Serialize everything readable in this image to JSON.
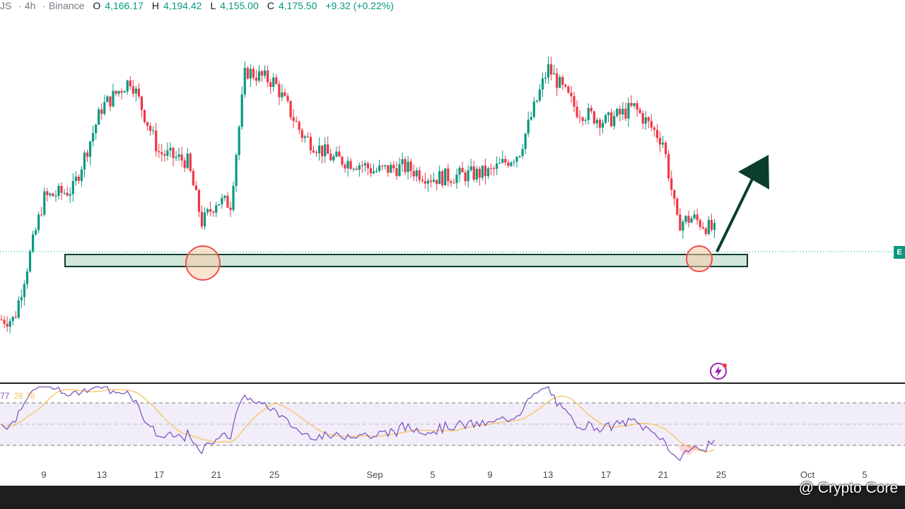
{
  "header": {
    "symbol_fragment": "JS",
    "interval": "4h",
    "exchange": "Binance",
    "open_label": "O",
    "open": "4,166.17",
    "high_label": "H",
    "high": "4,194.42",
    "low_label": "L",
    "low": "4,155.00",
    "close_label": "C",
    "close": "4,175.50",
    "change": "+9.32 (+0.22%)"
  },
  "rsi": {
    "value_fragment": "77",
    "ma_value": "28.78"
  },
  "price_tag": "E",
  "watermark": "@ Crypto Core",
  "colors": {
    "up": "#089981",
    "down": "#f23645",
    "support_zone": "#c9e3d2",
    "zone_border": "#0b3d2e",
    "highlight_circle": "#f5cca8",
    "arrow": "#0b3d2e",
    "rsi_line": "#7e57c2",
    "rsi_ma": "#f7c35f"
  },
  "chart_data": {
    "type": "candlestick",
    "title": "",
    "interval": "4h",
    "x_ticks": [
      "9",
      "13",
      "17",
      "21",
      "25",
      "Sep",
      "5",
      "9",
      "13",
      "17",
      "21",
      "25",
      "Oct",
      "5"
    ],
    "ylim": [
      3650,
      4950
    ],
    "trend": {
      "x": [
        "8",
        "9",
        "11",
        "13",
        "15",
        "17",
        "19",
        "20",
        "21",
        "22",
        "23",
        "25",
        "27",
        "29",
        "31",
        "Sep",
        "3",
        "5",
        "7",
        "9",
        "11",
        "13",
        "15",
        "17",
        "19",
        "21",
        "22",
        "23",
        "24"
      ],
      "close": [
        3870,
        4300,
        4330,
        4620,
        4720,
        4460,
        4430,
        4210,
        4290,
        4280,
        4750,
        4710,
        4520,
        4440,
        4420,
        4395,
        4410,
        4370,
        4380,
        4390,
        4460,
        4760,
        4610,
        4570,
        4620,
        4500,
        4210,
        4230,
        4180
      ]
    },
    "support_zone": {
      "low": 4145,
      "high": 4185,
      "from": "11",
      "to": "26"
    },
    "highlights": [
      "20",
      "24"
    ],
    "annotation": "arrow-up",
    "rsi": {
      "levels": [
        70,
        50,
        30
      ],
      "last_ma": 28.78
    }
  }
}
